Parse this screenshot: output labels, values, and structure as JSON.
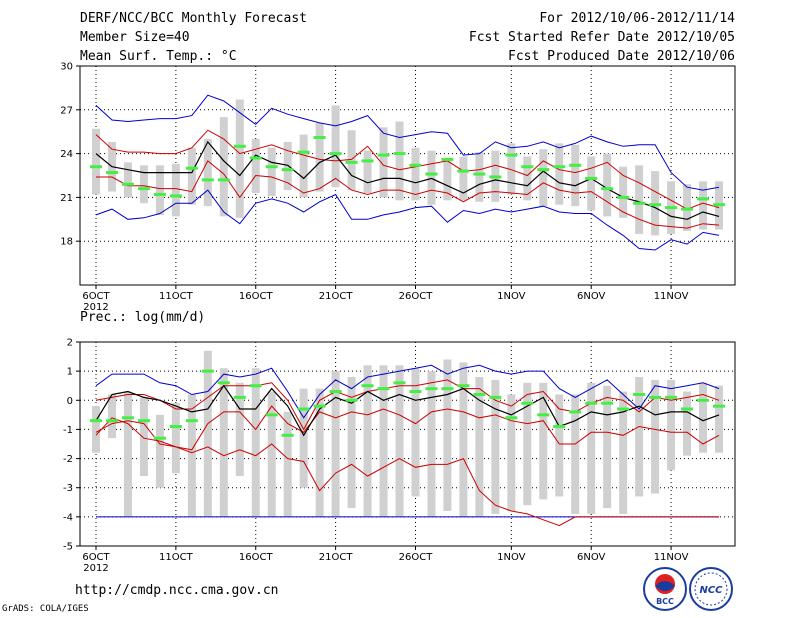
{
  "header": {
    "title": "DERF/NCC/BCC Monthly Forecast",
    "member_size": "Member Size=40",
    "variable": "Mean Surf. Temp.: °C",
    "period": "For 2012/10/06-2012/11/14",
    "refer_date": "Fcst Started Refer Date 2012/10/05",
    "produced_date": "Fcst Produced Date 2012/10/06"
  },
  "footer": {
    "url": "http://cmdp.ncc.cma.gov.cn",
    "credit": "GrADS: COLA/IGES",
    "logo_left_text": "BCC",
    "logo_right_text": "NCC"
  },
  "colors": {
    "max": "#0000cc",
    "pct": "#cc0000",
    "mean": "#000000",
    "median": "#44ee44",
    "box": "#d0d0d0"
  },
  "chart_data": [
    {
      "type": "box-ensemble",
      "title": "Mean Surf. Temp.: °C",
      "ylim": [
        15,
        30
      ],
      "yticks": [
        "30",
        "27",
        "24",
        "21",
        "18"
      ],
      "xticks": [
        "6OCT",
        "11OCT",
        "16OCT",
        "21OCT",
        "26OCT",
        "1NOV",
        "6NOV",
        "11NOV"
      ],
      "xtick_days": [
        0,
        5,
        10,
        15,
        20,
        26,
        31,
        36
      ],
      "xyear": "2012",
      "days": 40,
      "max": [
        27.3,
        26.3,
        26.2,
        26.3,
        26.4,
        26.4,
        26.6,
        28.0,
        27.6,
        26.8,
        26.0,
        27.1,
        26.7,
        26.4,
        26.1,
        25.9,
        26.2,
        26.6,
        25.4,
        25.1,
        25.3,
        25.5,
        25.4,
        23.9,
        24.0,
        24.8,
        24.4,
        24.5,
        24.8,
        24.4,
        24.7,
        25.2,
        24.8,
        24.5,
        24.6,
        24.6,
        22.7,
        21.7,
        21.5,
        21.7
      ],
      "p75": [
        25.3,
        24.3,
        24.1,
        24.1,
        24.0,
        24.0,
        24.4,
        25.6,
        25.0,
        24.0,
        24.3,
        24.6,
        24.2,
        23.9,
        23.6,
        23.5,
        23.6,
        24.5,
        23.2,
        22.9,
        23.1,
        23.3,
        23.5,
        22.8,
        22.9,
        23.2,
        22.9,
        22.5,
        23.5,
        22.9,
        22.7,
        23.0,
        23.4,
        22.5,
        22.0,
        21.4,
        20.8,
        20.2,
        20.6,
        20.3
      ],
      "mean": [
        24.0,
        23.1,
        22.9,
        22.7,
        22.7,
        22.7,
        22.7,
        24.8,
        23.5,
        22.5,
        23.9,
        23.4,
        23.2,
        22.3,
        23.4,
        23.9,
        22.5,
        22.0,
        22.3,
        22.3,
        22.0,
        22.3,
        21.8,
        21.3,
        21.9,
        22.2,
        22.0,
        21.8,
        22.8,
        22.0,
        21.8,
        22.3,
        21.6,
        21.0,
        20.7,
        20.3,
        19.7,
        19.5,
        20.0,
        19.7
      ],
      "p25": [
        22.4,
        22.4,
        21.8,
        21.8,
        21.6,
        21.6,
        21.4,
        23.5,
        22.6,
        21.0,
        22.5,
        22.4,
        22.0,
        21.3,
        21.6,
        22.3,
        21.5,
        21.2,
        21.5,
        21.5,
        21.2,
        21.5,
        21.3,
        20.7,
        21.3,
        21.4,
        21.3,
        21.2,
        22.0,
        21.5,
        21.3,
        21.4,
        20.7,
        20.0,
        19.5,
        19.1,
        19.0,
        18.9,
        19.2,
        19.1
      ],
      "min": [
        19.8,
        20.2,
        19.5,
        19.6,
        19.9,
        20.6,
        20.6,
        21.5,
        20.0,
        19.2,
        20.6,
        20.9,
        20.6,
        20.0,
        20.7,
        21.2,
        19.5,
        19.5,
        19.8,
        20.0,
        20.3,
        20.4,
        19.3,
        20.1,
        19.9,
        20.2,
        20.0,
        20.2,
        20.4,
        20.0,
        19.9,
        19.9,
        19.1,
        18.4,
        17.5,
        17.4,
        18.1,
        17.8,
        18.6,
        18.4
      ],
      "median": [
        23.1,
        22.7,
        21.9,
        21.6,
        21.2,
        21.1,
        23.0,
        22.2,
        22.2,
        24.5,
        23.7,
        23.1,
        22.9,
        24.1,
        25.1,
        24.0,
        23.4,
        23.5,
        23.9,
        24.0,
        23.2,
        22.6,
        23.6,
        22.8,
        22.6,
        22.4,
        23.9,
        23.1,
        22.9,
        23.1,
        23.2,
        22.3,
        21.6,
        21.0,
        20.6,
        20.5,
        20.3,
        20.2,
        20.9,
        20.5
      ],
      "box_top": [
        25.7,
        24.8,
        23.4,
        23.2,
        23.2,
        23.3,
        24.4,
        25.0,
        26.5,
        27.7,
        25.0,
        24.4,
        24.8,
        25.3,
        26.1,
        27.3,
        25.6,
        24.2,
        25.8,
        26.2,
        24.4,
        24.2,
        23.5,
        23.8,
        24.1,
        24.2,
        24.7,
        23.8,
        24.3,
        24.7,
        24.6,
        23.8,
        24.0,
        23.1,
        23.2,
        22.8,
        22.1,
        21.9,
        22.1,
        22.1
      ],
      "box_bot": [
        21.2,
        21.4,
        21.0,
        20.6,
        19.8,
        19.7,
        20.5,
        20.4,
        19.7,
        19.6,
        21.3,
        21.1,
        21.5,
        21.0,
        21.4,
        21.7,
        21.5,
        21.3,
        21.0,
        20.8,
        20.8,
        20.5,
        20.8,
        20.8,
        20.7,
        20.7,
        21.2,
        20.8,
        20.4,
        20.5,
        20.4,
        20.1,
        19.7,
        19.6,
        18.5,
        18.4,
        18.5,
        18.7,
        18.8,
        18.8
      ]
    },
    {
      "type": "box-ensemble",
      "title": "Prec.: log(mm/d)",
      "ylim": [
        -5,
        2
      ],
      "yticks": [
        "2",
        "1",
        "0",
        "-1",
        "-2",
        "-3",
        "-4",
        "-5"
      ],
      "xticks": [
        "6OCT",
        "11OCT",
        "16OCT",
        "21OCT",
        "26OCT",
        "1NOV",
        "6NOV",
        "11NOV"
      ],
      "xtick_days": [
        0,
        5,
        10,
        15,
        20,
        26,
        31,
        36
      ],
      "xyear": "2012",
      "days": 40,
      "max": [
        0.5,
        0.9,
        0.9,
        0.9,
        0.6,
        0.5,
        0.2,
        0.3,
        0.9,
        0.8,
        0.9,
        1.1,
        0.3,
        -0.6,
        0.2,
        0.7,
        0.4,
        0.8,
        0.9,
        1.0,
        1.1,
        1.2,
        0.9,
        1.1,
        1.2,
        1.0,
        0.9,
        1.0,
        1.0,
        0.4,
        0.1,
        0.4,
        0.7,
        0.2,
        -0.3,
        0.5,
        0.4,
        0.5,
        0.6,
        0.4
      ],
      "p75": [
        0.0,
        0.1,
        0.2,
        0.2,
        0.0,
        -0.3,
        -0.3,
        0.1,
        0.5,
        0.5,
        0.5,
        0.6,
        0.0,
        -1.0,
        0.0,
        0.3,
        0.1,
        0.3,
        0.4,
        0.5,
        0.5,
        0.6,
        0.7,
        0.4,
        0.4,
        0.0,
        -0.2,
        0.2,
        0.3,
        -0.3,
        -0.4,
        -0.1,
        0.1,
        0.0,
        -0.4,
        0.1,
        0.0,
        0.1,
        0.2,
        0.0
      ],
      "mean": [
        -0.7,
        0.2,
        0.3,
        0.1,
        0.0,
        -0.2,
        -0.4,
        -0.3,
        0.5,
        -0.3,
        -0.3,
        0.4,
        -0.2,
        -1.2,
        -0.3,
        0.1,
        -0.1,
        0.3,
        0.0,
        0.2,
        0.0,
        0.1,
        0.2,
        0.4,
        0.0,
        -0.3,
        -0.5,
        -0.2,
        0.1,
        -0.9,
        -0.7,
        -0.4,
        -0.5,
        -0.4,
        -0.2,
        -0.5,
        -0.4,
        -0.4,
        -0.7,
        -0.5
      ],
      "p25": [
        -1.1,
        -0.8,
        -0.7,
        -0.8,
        -1.5,
        -1.6,
        -1.7,
        -0.8,
        -0.4,
        -0.4,
        -1.0,
        -0.2,
        -0.8,
        -1.1,
        -0.4,
        -0.6,
        -0.4,
        -0.5,
        -0.3,
        -0.5,
        -0.8,
        -0.4,
        -0.3,
        -0.4,
        -0.6,
        -0.5,
        -0.7,
        -0.8,
        -0.7,
        -1.5,
        -1.5,
        -1.1,
        -1.1,
        -1.2,
        -0.9,
        -1.0,
        -1.1,
        -1.1,
        -1.5,
        -1.2
      ],
      "min": [
        -1.2,
        -0.6,
        -0.8,
        -1.3,
        -1.4,
        -1.6,
        -1.8,
        -1.6,
        -1.9,
        -1.7,
        -1.9,
        -1.5,
        -2.0,
        -2.1,
        -3.1,
        -2.5,
        -2.2,
        -2.6,
        -2.3,
        -2.0,
        -2.3,
        -2.2,
        -2.2,
        -2.0,
        -3.1,
        -3.6,
        -3.8,
        -3.9,
        -4.1,
        -4.3,
        -4.0,
        -4.0,
        -4.0,
        -4.0,
        -4.0,
        -4.0,
        -4.0,
        -4.0,
        -4.0,
        -4.0
      ],
      "low": [
        -4.0,
        -4.0,
        -4.0,
        -4.0,
        -4.0,
        -4.0,
        -4.0,
        -4.0,
        -4.0,
        -4.0,
        -4.0,
        -4.0,
        -4.0,
        -4.0,
        -4.0,
        -4.0,
        -4.0,
        -4.0,
        -4.0,
        -4.0,
        -4.0,
        -4.0,
        -4.0,
        -4.0,
        -4.0,
        -4.0,
        -4.0,
        -4.0,
        -4.0,
        -4.0,
        -4.0,
        -4.0,
        -4.0,
        -4.0,
        -4.0,
        -4.0,
        -4.0,
        -4.0,
        -4.0,
        -4.0
      ],
      "median": [
        -0.7,
        -0.7,
        -0.6,
        -0.7,
        -1.3,
        -0.9,
        -0.7,
        1.0,
        0.6,
        0.1,
        0.5,
        -0.5,
        -1.2,
        -0.3,
        -0.2,
        0.3,
        0.0,
        0.5,
        0.4,
        0.6,
        0.3,
        0.4,
        0.4,
        0.5,
        0.2,
        0.1,
        -0.6,
        -0.1,
        -0.5,
        -0.9,
        -0.4,
        -0.1,
        -0.1,
        -0.3,
        0.2,
        0.1,
        0.1,
        -0.3,
        0.0,
        -0.2
      ],
      "box_top": [
        -0.2,
        0.2,
        0.3,
        0.1,
        -0.5,
        -0.1,
        0.2,
        1.7,
        1.1,
        0.6,
        1.1,
        0.3,
        -0.4,
        0.4,
        0.4,
        1.0,
        0.8,
        1.2,
        1.2,
        1.2,
        1.1,
        1.0,
        1.4,
        1.3,
        0.8,
        0.7,
        0.2,
        0.6,
        0.6,
        0.2,
        0.2,
        0.6,
        0.5,
        0.3,
        0.8,
        0.7,
        0.7,
        0.3,
        0.6,
        0.5
      ],
      "box_bot": [
        -1.8,
        -1.3,
        -4.0,
        -2.6,
        -3.0,
        -2.5,
        -4.0,
        -4.0,
        -4.0,
        -2.6,
        -4.0,
        -4.0,
        -4.0,
        -3.0,
        -4.0,
        -4.0,
        -3.7,
        -4.0,
        -4.0,
        -4.0,
        -3.3,
        -4.0,
        -3.8,
        -4.0,
        -4.0,
        -3.9,
        -3.8,
        -3.6,
        -3.4,
        -3.3,
        -3.9,
        -3.9,
        -3.7,
        -3.9,
        -3.3,
        -3.2,
        -2.4,
        -1.9,
        -1.8,
        -1.8
      ]
    }
  ]
}
